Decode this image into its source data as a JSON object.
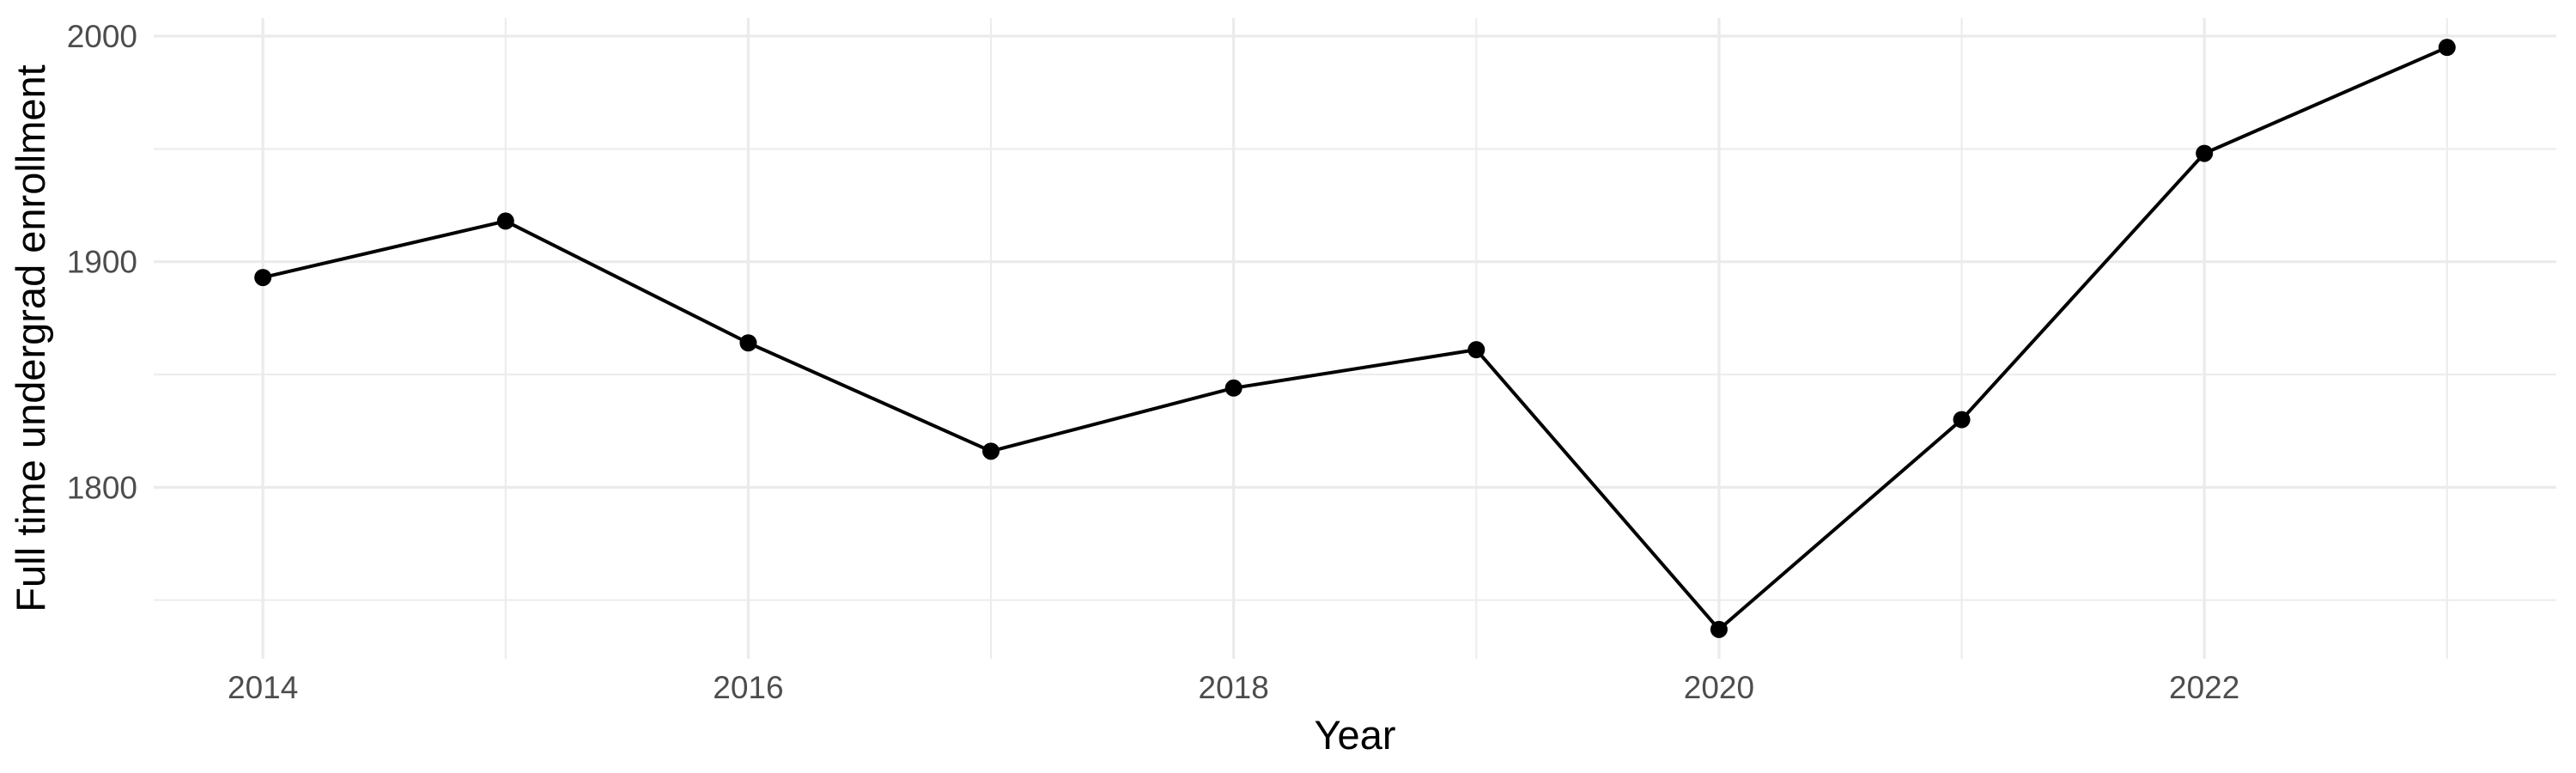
{
  "chart_data": {
    "type": "line",
    "title": "",
    "xlabel": "Year",
    "ylabel": "Full time undergrad enrollment",
    "x": [
      2014,
      2015,
      2016,
      2017,
      2018,
      2019,
      2020,
      2021,
      2022,
      2023
    ],
    "series": [
      {
        "name": "Full time undergrad enrollment",
        "values": [
          1893,
          1918,
          1864,
          1816,
          1844,
          1861,
          1737,
          1830,
          1948,
          1995
        ]
      }
    ],
    "xlim": [
      2013.55,
      2023.45
    ],
    "ylim": [
      1724,
      2008
    ],
    "x_ticks_major": [
      2014,
      2016,
      2018,
      2020,
      2022
    ],
    "x_ticks_minor": [
      2015,
      2017,
      2019,
      2021,
      2023
    ],
    "y_ticks_major": [
      1800,
      1900,
      2000
    ],
    "y_ticks_minor": [
      1750,
      1850,
      1950
    ],
    "grid": "major-and-minor",
    "legend": "none",
    "marker": "filled-circle",
    "colors": {
      "line": "#000000",
      "point": "#000000",
      "grid_major": "#EBEBEB",
      "grid_minor": "#EDEDED",
      "tick_label": "#4D4D4D",
      "axis_title": "#000000",
      "background": "#FFFFFF"
    }
  }
}
